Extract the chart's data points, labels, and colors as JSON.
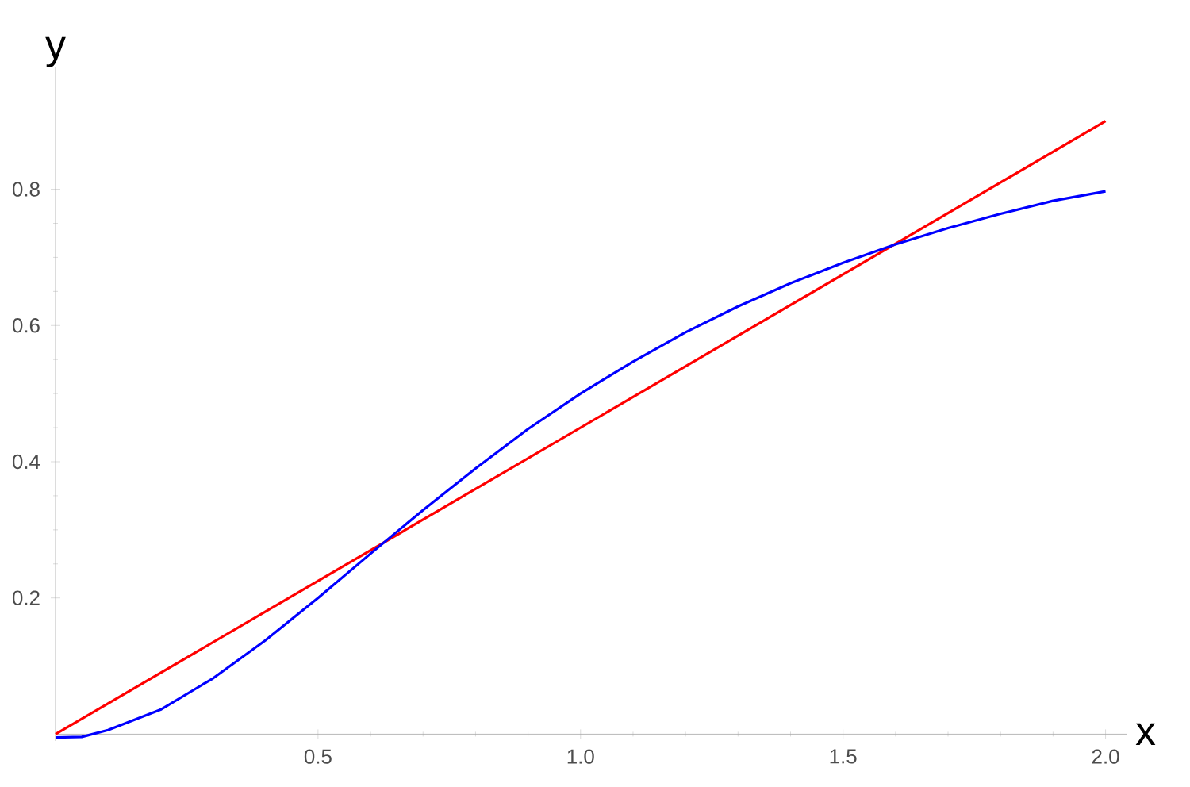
{
  "chart_data": {
    "type": "line",
    "xlabel": "x",
    "ylabel": "y",
    "xlim": [
      0,
      2.04
    ],
    "ylim": [
      -0.01,
      0.98
    ],
    "xticks": [
      0.5,
      {
        "value": 1,
        "label": "1.0"
      },
      1.5,
      {
        "value": 2,
        "label": "2.0"
      }
    ],
    "yticks": [
      0.2,
      0.4,
      0.6,
      0.8
    ],
    "marker": "none",
    "line_style": "solid",
    "series": [
      {
        "color": "#ff0000",
        "x": [
          0,
          2
        ],
        "values": [
          0,
          0.9
        ]
      },
      {
        "color": "#0000ff",
        "x": [
          0,
          0.05,
          0.1,
          0.2,
          0.3,
          0.4,
          0.5,
          0.6,
          0.7,
          0.8,
          0.9,
          1.0,
          1.1,
          1.2,
          1.3,
          1.4,
          1.5,
          1.6,
          1.7,
          1.8,
          1.9,
          2.0
        ],
        "values": [
          -0.005,
          -0.004,
          0.006,
          0.036,
          0.082,
          0.138,
          0.2,
          0.265,
          0.329,
          0.39,
          0.448,
          0.5,
          0.547,
          0.59,
          0.628,
          0.662,
          0.692,
          0.719,
          0.743,
          0.764,
          0.783,
          0.797
        ]
      }
    ]
  }
}
